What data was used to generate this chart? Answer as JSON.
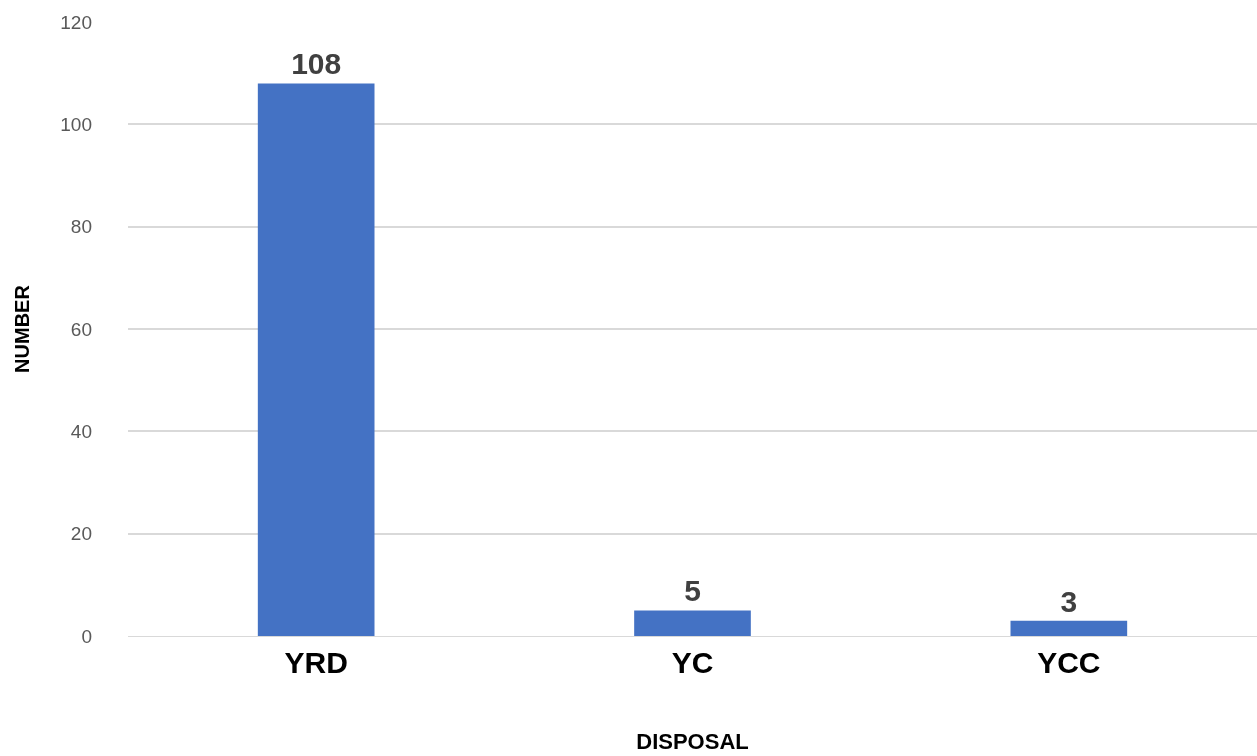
{
  "chart_data": {
    "type": "bar",
    "xlabel": "DISPOSAL",
    "ylabel": "NUMBER",
    "categories": [
      "YRD",
      "YC",
      "YCC"
    ],
    "series": [
      {
        "color": "#4472c4",
        "values": [
          108,
          5,
          3
        ]
      }
    ],
    "ylim": [
      0,
      120
    ],
    "yticks": [
      0,
      20,
      40,
      60,
      80,
      100,
      120
    ],
    "grid": "y",
    "data_labels": true
  }
}
